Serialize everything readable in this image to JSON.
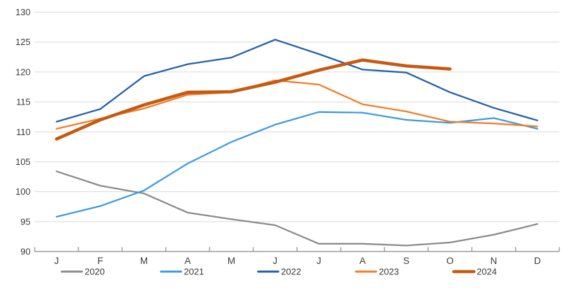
{
  "chart_data": {
    "type": "line",
    "title": "",
    "categories": [
      "J",
      "F",
      "M",
      "A",
      "M",
      "J",
      "J",
      "A",
      "S",
      "O",
      "N",
      "D"
    ],
    "series": [
      {
        "name": "2020",
        "color": "#8B8B8B",
        "stroke_width": 2.3,
        "values": [
          103.4,
          101.0,
          99.7,
          96.5,
          95.4,
          94.4,
          91.3,
          91.3,
          91.0,
          91.5,
          92.8,
          94.6
        ]
      },
      {
        "name": "2021",
        "color": "#3E9BDE",
        "stroke_width": 2.3,
        "values": [
          95.8,
          97.6,
          100.2,
          104.7,
          108.3,
          111.2,
          113.3,
          113.2,
          112.0,
          111.5,
          112.3,
          110.5
        ]
      },
      {
        "name": "2022",
        "color": "#2161AE",
        "stroke_width": 2.3,
        "values": [
          111.7,
          113.8,
          119.3,
          121.3,
          122.4,
          125.4,
          123.0,
          120.4,
          119.9,
          116.6,
          114.0,
          111.9
        ]
      },
      {
        "name": "2023",
        "color": "#F07E28",
        "stroke_width": 2.3,
        "values": [
          110.5,
          112.2,
          113.9,
          116.2,
          116.6,
          118.6,
          117.9,
          114.6,
          113.4,
          111.7,
          111.4,
          110.9
        ]
      },
      {
        "name": "2024",
        "color": "#C55A11",
        "stroke_width": 4.6,
        "values": [
          108.8,
          112.0,
          114.5,
          116.6,
          116.7,
          118.3,
          120.3,
          122.0,
          121.0,
          120.5,
          null,
          null
        ]
      }
    ],
    "ylim": [
      90,
      130
    ],
    "yticks": [
      90,
      95,
      100,
      105,
      110,
      115,
      120,
      125,
      130
    ],
    "xlabel": "",
    "ylabel": "",
    "grid": "horizontal",
    "gridline_color": "#D9D9D9",
    "axis_line_color": "#8A8A8A",
    "axis_label_color": "#3B3B3B",
    "legend_position": "bottom",
    "legend_labels": [
      "2020",
      "2021",
      "2022",
      "2023",
      "2024"
    ]
  }
}
